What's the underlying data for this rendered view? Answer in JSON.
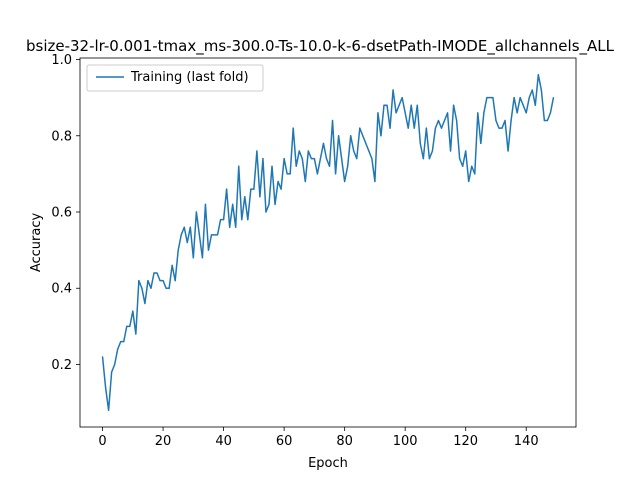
{
  "chart_data": {
    "type": "line",
    "title": "bsize-32-lr-0.001-tmax_ms-300.0-Ts-10.0-k-6-dsetPath-IMODE_allchannels_ALL",
    "xlabel": "Epoch",
    "ylabel": "Accuracy",
    "xlim": [
      -7.45,
      156.45
    ],
    "ylim": [
      0.036,
      1.004
    ],
    "xticks": [
      0,
      20,
      40,
      60,
      80,
      100,
      120,
      140
    ],
    "yticks": [
      0.2,
      0.4,
      0.6,
      0.8,
      1.0
    ],
    "ytick_labels": [
      "0.2",
      "0.4",
      "0.6",
      "0.8",
      "1.0"
    ],
    "legend_position": "upper left",
    "grid": false,
    "series": [
      {
        "name": "Training (last fold)",
        "color": "#1f77b4",
        "x_start": 0,
        "values": [
          0.22,
          0.14,
          0.08,
          0.18,
          0.2,
          0.24,
          0.26,
          0.26,
          0.3,
          0.3,
          0.34,
          0.28,
          0.42,
          0.4,
          0.36,
          0.42,
          0.4,
          0.44,
          0.44,
          0.42,
          0.42,
          0.4,
          0.4,
          0.46,
          0.42,
          0.5,
          0.54,
          0.56,
          0.52,
          0.56,
          0.48,
          0.6,
          0.54,
          0.48,
          0.62,
          0.5,
          0.54,
          0.54,
          0.54,
          0.58,
          0.58,
          0.66,
          0.56,
          0.62,
          0.56,
          0.72,
          0.58,
          0.64,
          0.58,
          0.66,
          0.66,
          0.76,
          0.64,
          0.74,
          0.6,
          0.62,
          0.72,
          0.62,
          0.68,
          0.66,
          0.74,
          0.7,
          0.7,
          0.82,
          0.72,
          0.76,
          0.74,
          0.68,
          0.76,
          0.74,
          0.74,
          0.7,
          0.74,
          0.78,
          0.74,
          0.72,
          0.84,
          0.7,
          0.8,
          0.74,
          0.68,
          0.72,
          0.8,
          0.76,
          0.74,
          0.82,
          0.8,
          0.78,
          0.76,
          0.74,
          0.68,
          0.86,
          0.8,
          0.88,
          0.88,
          0.82,
          0.92,
          0.86,
          0.88,
          0.9,
          0.86,
          0.82,
          0.88,
          0.82,
          0.88,
          0.78,
          0.74,
          0.82,
          0.74,
          0.76,
          0.82,
          0.84,
          0.82,
          0.84,
          0.86,
          0.76,
          0.88,
          0.84,
          0.74,
          0.72,
          0.76,
          0.68,
          0.72,
          0.7,
          0.86,
          0.78,
          0.86,
          0.9,
          0.9,
          0.9,
          0.84,
          0.82,
          0.82,
          0.84,
          0.76,
          0.84,
          0.9,
          0.86,
          0.9,
          0.88,
          0.86,
          0.9,
          0.92,
          0.88,
          0.96,
          0.92,
          0.84,
          0.84,
          0.86,
          0.9
        ]
      }
    ]
  }
}
